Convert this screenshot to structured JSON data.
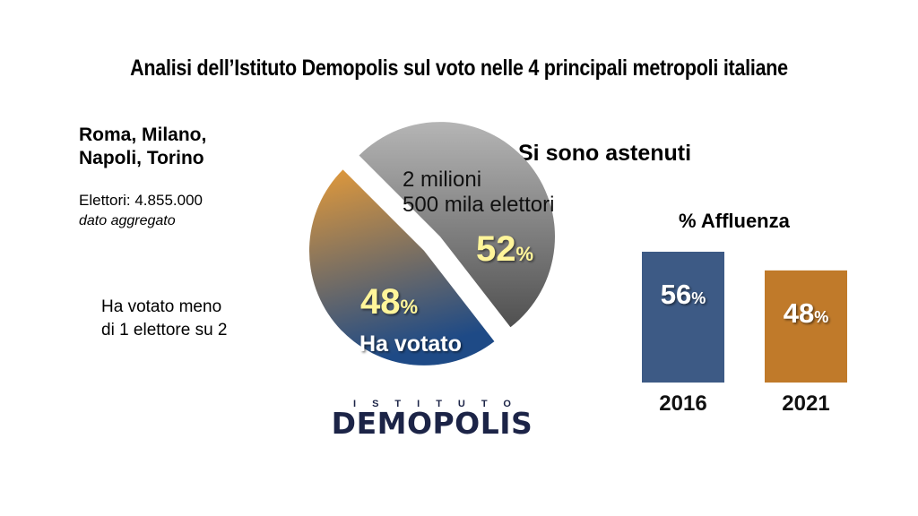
{
  "title": "Analisi dell’Istituto Demopolis sul voto nelle 4 principali metropoli italiane",
  "cities": {
    "line1": "Roma, Milano,",
    "line2": "Napoli, Torino"
  },
  "electors": {
    "label": "Elettori: 4.855.000",
    "note": "dato aggregato"
  },
  "summary": {
    "line1": "Ha votato meno",
    "line2": "di 1 elettore su 2"
  },
  "abstained_heading": "Si sono astenuti",
  "pie_labels": {
    "abstained_line1": "2 milioni",
    "abstained_line2": "500 mila elettori",
    "abstained_number": "52",
    "voted_number": "48",
    "percent_sign": "%",
    "voted_label": "Ha votato"
  },
  "turnout_heading": "% Affluenza",
  "logo": {
    "top": "ISTITUTO",
    "main": "DEMOPOLIS"
  },
  "colors": {
    "abstained_light": "#b5b5b5",
    "abstained_dark": "#505050",
    "voted_top": "#e39a3a",
    "voted_bottom": "#1e4a86",
    "bar_2016": "#3d5a85",
    "bar_2021": "#c07a2a",
    "highlight_text": "#fff59a"
  },
  "chart_data": [
    {
      "type": "pie",
      "exploded": true,
      "slices": [
        {
          "label": "Si sono astenuti",
          "value": 52
        },
        {
          "label": "Ha votato",
          "value": 48
        }
      ]
    },
    {
      "type": "bar",
      "title": "% Affluenza",
      "categories": [
        "2016",
        "2021"
      ],
      "values": [
        56,
        48
      ],
      "value_labels": [
        "56%",
        "48%"
      ],
      "ylim": [
        0,
        56
      ]
    }
  ]
}
